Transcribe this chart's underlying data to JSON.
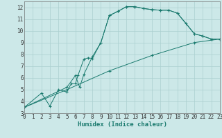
{
  "title": "",
  "xlabel": "Humidex (Indice chaleur)",
  "bg_color": "#cce8e8",
  "grid_color": "#aacfcf",
  "line_color": "#1a7a6e",
  "marker": "+",
  "xlim": [
    0,
    23
  ],
  "ylim": [
    3,
    12.5
  ],
  "xticks": [
    0,
    1,
    2,
    3,
    4,
    5,
    6,
    7,
    8,
    9,
    10,
    11,
    12,
    13,
    14,
    15,
    16,
    17,
    18,
    19,
    20,
    21,
    22,
    23
  ],
  "yticks": [
    3,
    4,
    5,
    6,
    7,
    8,
    9,
    10,
    11,
    12
  ],
  "series": [
    [
      [
        0,
        3.5
      ],
      [
        2,
        4.7
      ],
      [
        3,
        3.6
      ],
      [
        4,
        5.0
      ],
      [
        5,
        4.8
      ],
      [
        5.5,
        5.5
      ],
      [
        6,
        5.5
      ],
      [
        6.3,
        6.2
      ],
      [
        7,
        7.6
      ],
      [
        7.5,
        7.7
      ],
      [
        8,
        7.65
      ],
      [
        9,
        9.0
      ],
      [
        10,
        11.3
      ],
      [
        11,
        11.65
      ],
      [
        12,
        12.05
      ],
      [
        13,
        12.05
      ],
      [
        14,
        11.9
      ],
      [
        15,
        11.8
      ],
      [
        16,
        11.75
      ],
      [
        17,
        11.75
      ],
      [
        18,
        11.5
      ],
      [
        19,
        10.65
      ],
      [
        20,
        9.75
      ],
      [
        21,
        9.55
      ],
      [
        22,
        9.3
      ],
      [
        23,
        9.3
      ]
    ],
    [
      [
        0,
        3.5
      ],
      [
        5,
        5.0
      ],
      [
        10,
        6.6
      ],
      [
        15,
        7.9
      ],
      [
        20,
        9.0
      ],
      [
        23,
        9.3
      ]
    ],
    [
      [
        0,
        3.5
      ],
      [
        5,
        5.2
      ],
      [
        6,
        6.2
      ],
      [
        6.5,
        5.2
      ],
      [
        7,
        6.3
      ],
      [
        8,
        7.8
      ],
      [
        9,
        9.0
      ],
      [
        10,
        11.3
      ],
      [
        11,
        11.65
      ],
      [
        12,
        12.05
      ],
      [
        13,
        12.05
      ],
      [
        14,
        11.9
      ],
      [
        15,
        11.8
      ],
      [
        16,
        11.75
      ],
      [
        17,
        11.75
      ],
      [
        18,
        11.5
      ],
      [
        20,
        9.75
      ],
      [
        21,
        9.55
      ],
      [
        22,
        9.3
      ],
      [
        23,
        9.3
      ]
    ]
  ]
}
